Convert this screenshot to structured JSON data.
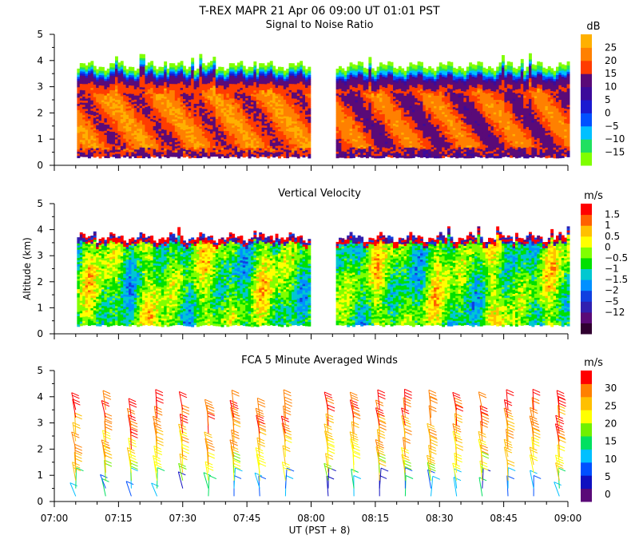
{
  "title": "T-REX  MAPR 21 Apr 06  09:00 UT  01:01  PST",
  "chart_data": [
    {
      "type": "heatmap",
      "title": "Signal to Noise Ratio",
      "xlabel": "",
      "ylabel": "",
      "x_range_minutes_utc": [
        420,
        540
      ],
      "ylim": [
        0,
        5
      ],
      "y_ticks": [
        0,
        1,
        2,
        3,
        4,
        5
      ],
      "data_gap_utc": [
        "08:00",
        "08:05"
      ],
      "echo_top_km": 3.8,
      "echo_base_km": 0.35,
      "colorbar": {
        "unit": "dB",
        "colors": [
          "#80ff00",
          "#20e060",
          "#00c0ff",
          "#0050ff",
          "#1a1ad0",
          "#3c0a9a",
          "#5a0a78",
          "#ff3c00",
          "#ff8000",
          "#ffb000"
        ],
        "labels": [
          "25",
          "20",
          "15",
          "10",
          "5",
          "0",
          "−5",
          "−10",
          "−15"
        ]
      }
    },
    {
      "type": "heatmap",
      "title": "Vertical Velocity",
      "xlabel": "",
      "ylabel": "Altitude (km)",
      "x_range_minutes_utc": [
        420,
        540
      ],
      "ylim": [
        0,
        5
      ],
      "y_ticks": [
        0,
        1,
        2,
        3,
        4,
        5
      ],
      "data_gap_utc": [
        "08:00",
        "08:05"
      ],
      "echo_top_km": 3.7,
      "echo_base_km": 0.35,
      "colorbar": {
        "unit": "m/s",
        "colors": [
          "#300030",
          "#5a0a78",
          "#3020b0",
          "#1040e0",
          "#0090ff",
          "#00c8d0",
          "#00e000",
          "#80ff00",
          "#ffff00",
          "#ffc000",
          "#ff6000",
          "#ff0000"
        ],
        "labels": [
          "1.5",
          "1",
          "0.5",
          "0",
          "−0.5",
          "−1",
          "−1.5",
          "−2",
          "−5",
          "−12"
        ]
      }
    },
    {
      "type": "scatter",
      "title": "FCA 5 Minute Averaged Winds",
      "xlabel": "UT  (PST + 8)",
      "ylabel": "",
      "x_range_minutes_utc": [
        420,
        540
      ],
      "ylim": [
        0,
        5
      ],
      "y_ticks": [
        0,
        1,
        2,
        3,
        4,
        5
      ],
      "x_tick_labels": [
        "07:00",
        "07:15",
        "07:30",
        "07:45",
        "08:00",
        "08:15",
        "08:30",
        "08:45",
        "09:00"
      ],
      "profile_times_utc": [
        "07:05",
        "07:12",
        "07:18",
        "07:24",
        "07:30",
        "07:36",
        "07:42",
        "07:48",
        "07:54",
        "08:04",
        "08:10",
        "08:16",
        "08:22",
        "08:28",
        "08:34",
        "08:40",
        "08:46",
        "08:52",
        "08:58"
      ],
      "barb_levels_km": [
        0.2,
        0.5,
        0.8,
        1.1,
        1.4,
        1.7,
        2.0,
        2.3,
        2.6,
        2.9,
        3.2,
        3.5
      ],
      "colorbar": {
        "unit": "m/s",
        "colors": [
          "#5a0a78",
          "#1010c0",
          "#0050ff",
          "#00c0ff",
          "#00e060",
          "#70f000",
          "#ffff00",
          "#ffc000",
          "#ff8000",
          "#ff0000"
        ],
        "labels": [
          "30",
          "25",
          "20",
          "15",
          "10",
          "5",
          "0"
        ]
      }
    }
  ]
}
